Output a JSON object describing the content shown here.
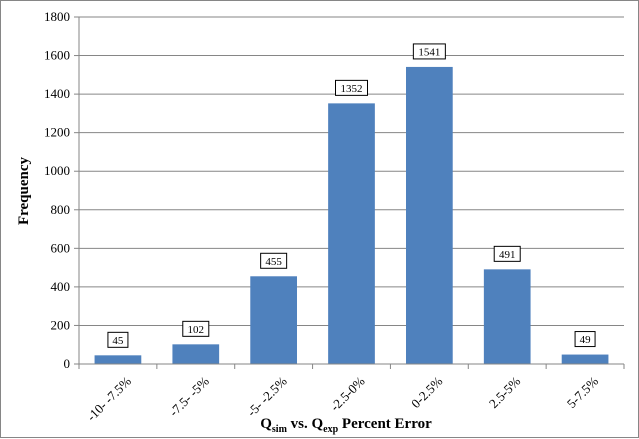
{
  "chart_data": {
    "type": "bar",
    "categories": [
      "-10- -7.5%",
      "-7.5- -5%",
      "-5- -2.5%",
      "-2.5-0%",
      "0-2.5%",
      "2.5-5%",
      "5-7.5%"
    ],
    "values": [
      45,
      102,
      455,
      1352,
      1541,
      491,
      49
    ],
    "data_labels": [
      "45",
      "102",
      "455",
      "1352",
      "1541",
      "491",
      "49"
    ],
    "ylabel": "Frequency",
    "xlabel": {
      "q1": "Q",
      "q1_sub": "sim",
      "vs": " vs. ",
      "q2": "Q",
      "q2_sub": "exp",
      "rest": " Percent Error"
    },
    "ylim": [
      0,
      1800
    ],
    "yticks": [
      0,
      200,
      400,
      600,
      800,
      1000,
      1200,
      1400,
      1600,
      1800
    ],
    "grid": true,
    "legend": "none",
    "colors": {
      "bar": "#4F81BD",
      "grid": "#868686",
      "axis": "#868686",
      "label_border": "#000000"
    }
  }
}
